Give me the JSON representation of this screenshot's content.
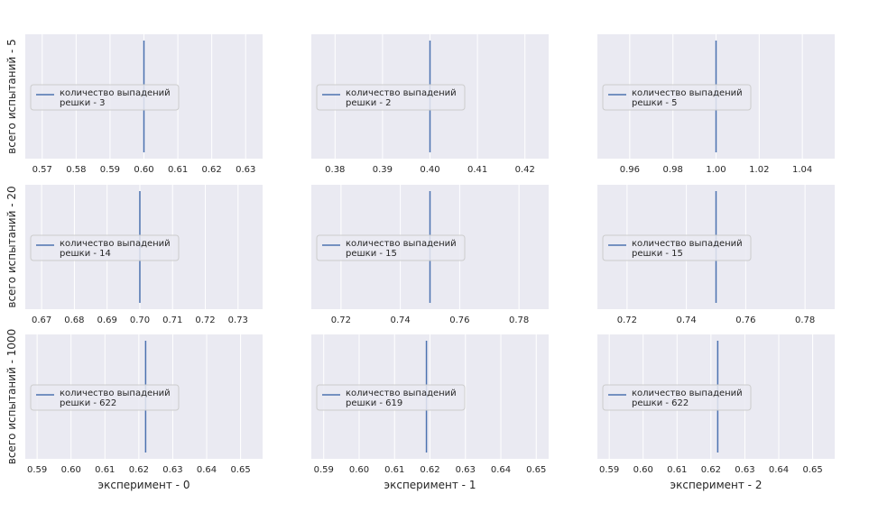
{
  "chart_data": {
    "type": "grid-of-line-plots",
    "row_labels": [
      "всего испытаний - 5",
      "всего испытаний - 20",
      "всего испытаний - 1000"
    ],
    "col_labels": [
      "эксперимент - 0",
      "эксперимент - 1",
      "эксперимент - 2"
    ],
    "line_color": "#4c72b0",
    "background_color": "#eaeaf2",
    "grid_color": "#ffffff",
    "panels": [
      {
        "row": 0,
        "col": 0,
        "xlim": [
          0.565,
          0.635
        ],
        "ticks": [
          0.57,
          0.58,
          0.59,
          0.6,
          0.61,
          0.62,
          0.63
        ],
        "tick_labels": [
          "0.57",
          "0.58",
          "0.59",
          "0.60",
          "0.61",
          "0.62",
          "0.63"
        ],
        "value": 0.6,
        "legend": [
          "количество выпадений",
          "решки - 3"
        ]
      },
      {
        "row": 0,
        "col": 1,
        "xlim": [
          0.375,
          0.425
        ],
        "ticks": [
          0.38,
          0.39,
          0.4,
          0.41,
          0.42
        ],
        "tick_labels": [
          "0.38",
          "0.39",
          "0.40",
          "0.41",
          "0.42"
        ],
        "value": 0.4,
        "legend": [
          "количество выпадений",
          "решки - 2"
        ]
      },
      {
        "row": 0,
        "col": 2,
        "xlim": [
          0.945,
          1.055
        ],
        "ticks": [
          0.96,
          0.98,
          1.0,
          1.02,
          1.04
        ],
        "tick_labels": [
          "0.96",
          "0.98",
          "1.00",
          "1.02",
          "1.04"
        ],
        "value": 1.0,
        "legend": [
          "количество выпадений",
          "решки - 5"
        ]
      },
      {
        "row": 1,
        "col": 0,
        "xlim": [
          0.665,
          0.7375
        ],
        "ticks": [
          0.67,
          0.68,
          0.69,
          0.7,
          0.71,
          0.72,
          0.73
        ],
        "tick_labels": [
          "0.67",
          "0.68",
          "0.69",
          "0.70",
          "0.71",
          "0.72",
          "0.73"
        ],
        "value": 0.7,
        "legend": [
          "количество выпадений",
          "решки - 14"
        ]
      },
      {
        "row": 1,
        "col": 1,
        "xlim": [
          0.71,
          0.79
        ],
        "ticks": [
          0.72,
          0.74,
          0.76,
          0.78
        ],
        "tick_labels": [
          "0.72",
          "0.74",
          "0.76",
          "0.78"
        ],
        "value": 0.75,
        "legend": [
          "количество выпадений",
          "решки - 15"
        ]
      },
      {
        "row": 1,
        "col": 2,
        "xlim": [
          0.71,
          0.79
        ],
        "ticks": [
          0.72,
          0.74,
          0.76,
          0.78
        ],
        "tick_labels": [
          "0.72",
          "0.74",
          "0.76",
          "0.78"
        ],
        "value": 0.75,
        "legend": [
          "количество выпадений",
          "решки - 15"
        ]
      },
      {
        "row": 2,
        "col": 0,
        "xlim": [
          0.5865,
          0.6565
        ],
        "ticks": [
          0.59,
          0.6,
          0.61,
          0.62,
          0.63,
          0.64,
          0.65
        ],
        "tick_labels": [
          "0.59",
          "0.60",
          "0.61",
          "0.62",
          "0.63",
          "0.64",
          "0.65"
        ],
        "value": 0.622,
        "legend": [
          "количество выпадений",
          "решки - 622"
        ]
      },
      {
        "row": 2,
        "col": 1,
        "xlim": [
          0.5865,
          0.6535
        ],
        "ticks": [
          0.59,
          0.6,
          0.61,
          0.62,
          0.63,
          0.64,
          0.65
        ],
        "tick_labels": [
          "0.59",
          "0.60",
          "0.61",
          "0.62",
          "0.63",
          "0.64",
          "0.65"
        ],
        "value": 0.619,
        "legend": [
          "количество выпадений",
          "решки - 619"
        ]
      },
      {
        "row": 2,
        "col": 2,
        "xlim": [
          0.5865,
          0.6565
        ],
        "ticks": [
          0.59,
          0.6,
          0.61,
          0.62,
          0.63,
          0.64,
          0.65
        ],
        "tick_labels": [
          "0.59",
          "0.60",
          "0.61",
          "0.62",
          "0.63",
          "0.64",
          "0.65"
        ],
        "value": 0.622,
        "legend": [
          "количество выпадений",
          "решки - 622"
        ]
      }
    ]
  }
}
